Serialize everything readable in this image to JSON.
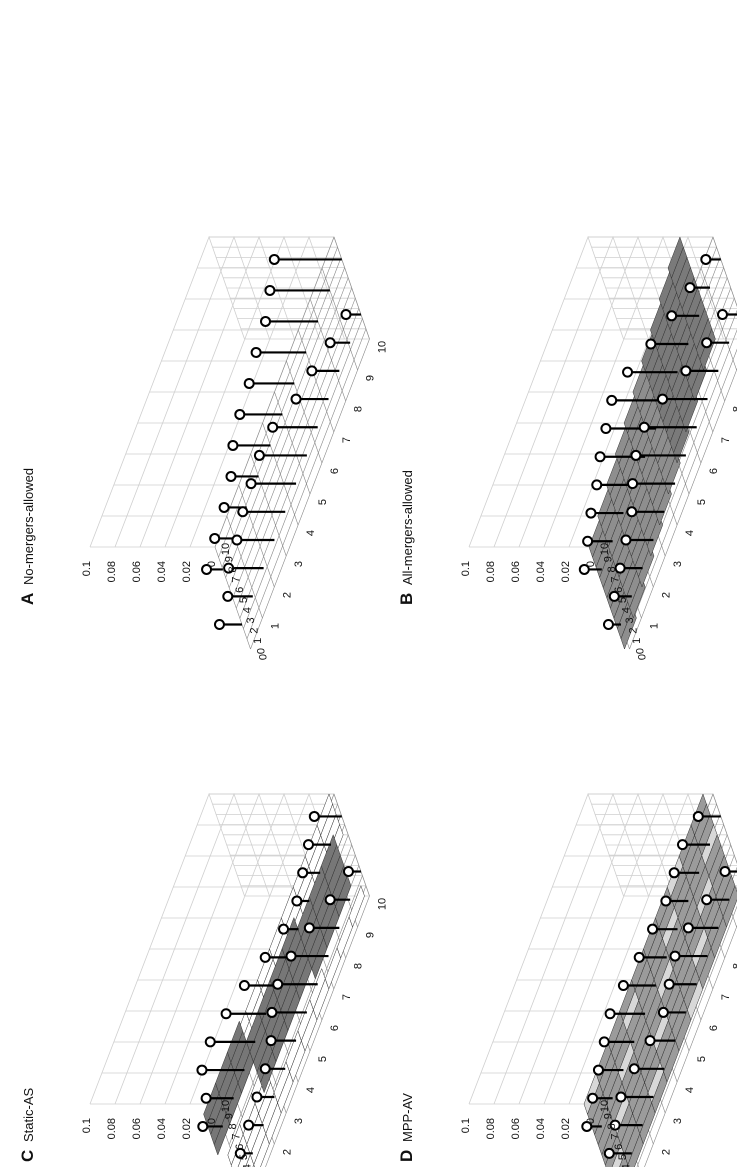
{
  "figure": {
    "panels": [
      {
        "letter": "A",
        "title": "No-mergers-allowed"
      },
      {
        "letter": "B",
        "title": "All-mergers-allowed"
      },
      {
        "letter": "C",
        "title": "Static-AS"
      },
      {
        "letter": "D",
        "title": "MPP-AV"
      }
    ]
  },
  "chart_data": [
    {
      "panel": "A",
      "type": "stem3d",
      "title": "No-mergers-allowed",
      "z_ticks": [
        "0",
        "0.02",
        "0.04",
        "0.06",
        "0.08",
        "0.1"
      ],
      "zlim": [
        0,
        0.1
      ],
      "x_ticks": [
        "10",
        "9",
        "8",
        "7",
        "6",
        "5",
        "4",
        "3",
        "2",
        "1",
        "0"
      ],
      "y_ticks": [
        "0",
        "1",
        "2",
        "3",
        "4",
        "5",
        "6",
        "7",
        "8",
        "9",
        "10"
      ],
      "surface": "none",
      "points_row1": [
        0.013,
        0.016,
        0.018,
        0.022,
        0.03,
        0.034,
        0.036,
        0.04,
        0.042,
        0.048,
        0.054
      ],
      "points_row2": [
        0.018,
        0.02,
        0.028,
        0.03,
        0.034,
        0.036,
        0.038,
        0.036,
        0.026,
        0.022,
        0.016,
        0.012
      ]
    },
    {
      "panel": "B",
      "type": "stem3d",
      "title": "All-mergers-allowed",
      "z_ticks": [
        "0",
        "0.02",
        "0.04",
        "0.06",
        "0.08",
        "0.1"
      ],
      "zlim": [
        0,
        0.1
      ],
      "x_ticks": [
        "10",
        "9",
        "8",
        "7",
        "6",
        "5",
        "4",
        "3",
        "2",
        "1",
        "0"
      ],
      "y_ticks": [
        "0",
        "1",
        "2",
        "3",
        "4",
        "5",
        "6",
        "7",
        "8",
        "9",
        "10"
      ],
      "surface": "plane",
      "points_row1": [
        0.014,
        0.02,
        0.026,
        0.03,
        0.036,
        0.04,
        0.044,
        0.04,
        0.03,
        0.022,
        0.016,
        0.012
      ],
      "points_row2": [
        0.01,
        0.014,
        0.018,
        0.022,
        0.026,
        0.034,
        0.04,
        0.042,
        0.036,
        0.026,
        0.018,
        0.014
      ]
    },
    {
      "panel": "C",
      "type": "stem3d",
      "title": "Static-AS",
      "z_ticks": [
        "0",
        "0.02",
        "0.04",
        "0.06",
        "0.08",
        "0.1"
      ],
      "zlim": [
        0,
        0.1
      ],
      "x_ticks": [
        "10",
        "9",
        "8",
        "7",
        "6",
        "5",
        "4",
        "3",
        "2",
        "1",
        "0"
      ],
      "y_ticks": [
        "0",
        "1",
        "2",
        "3",
        "4",
        "5",
        "6",
        "7",
        "8",
        "9",
        "10"
      ],
      "surface": "zigzag",
      "points_row1": [
        0.016,
        0.022,
        0.034,
        0.036,
        0.032,
        0.026,
        0.018,
        0.012,
        0.01,
        0.014,
        0.018,
        0.022
      ],
      "points_row2": [
        0.008,
        0.01,
        0.012,
        0.014,
        0.016,
        0.02,
        0.028,
        0.032,
        0.03,
        0.024,
        0.016,
        0.01
      ]
    },
    {
      "panel": "D",
      "type": "stem3d",
      "title": "MPP-AV",
      "z_ticks": [
        "0",
        "0.02",
        "0.04",
        "0.06",
        "0.08",
        "0.1"
      ],
      "zlim": [
        0,
        0.1
      ],
      "x_ticks": [
        "10",
        "9",
        "8",
        "7",
        "6",
        "5",
        "4",
        "3",
        "2",
        "1",
        "0"
      ],
      "y_ticks": [
        "0",
        "1",
        "2",
        "3",
        "4",
        "5",
        "6",
        "7",
        "8",
        "9",
        "10"
      ],
      "surface": "patchy",
      "points_row1": [
        0.012,
        0.016,
        0.02,
        0.024,
        0.028,
        0.026,
        0.022,
        0.02,
        0.018,
        0.02,
        0.022,
        0.018
      ],
      "points_row2": [
        0.014,
        0.018,
        0.022,
        0.026,
        0.024,
        0.02,
        0.018,
        0.022,
        0.026,
        0.024,
        0.018,
        0.012
      ]
    }
  ]
}
